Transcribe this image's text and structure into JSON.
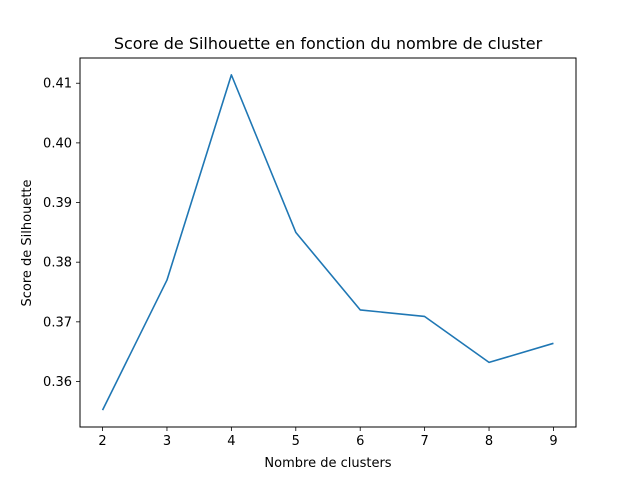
{
  "chart_data": {
    "type": "line",
    "title": "Score de Silhouette en fonction du nombre de cluster",
    "xlabel": "Nombre de clusters",
    "ylabel": "Score de Silhouette",
    "x": [
      2,
      3,
      4,
      5,
      6,
      7,
      8,
      9
    ],
    "series": [
      {
        "values": [
          0.3552,
          0.377,
          0.4114,
          0.385,
          0.372,
          0.3709,
          0.3632,
          0.3664
        ],
        "color": "#1f77b4"
      }
    ],
    "xlim": [
      1.65,
      9.35
    ],
    "ylim": [
      0.35237,
      0.41423
    ],
    "xticks": [
      2,
      3,
      4,
      5,
      6,
      7,
      8,
      9
    ],
    "yticks": [
      0.36,
      0.37,
      0.38,
      0.39,
      0.4,
      0.41
    ],
    "ytick_labels": [
      "0.36",
      "0.37",
      "0.38",
      "0.39",
      "0.40",
      "0.41"
    ],
    "grid": false,
    "legend": "none"
  }
}
